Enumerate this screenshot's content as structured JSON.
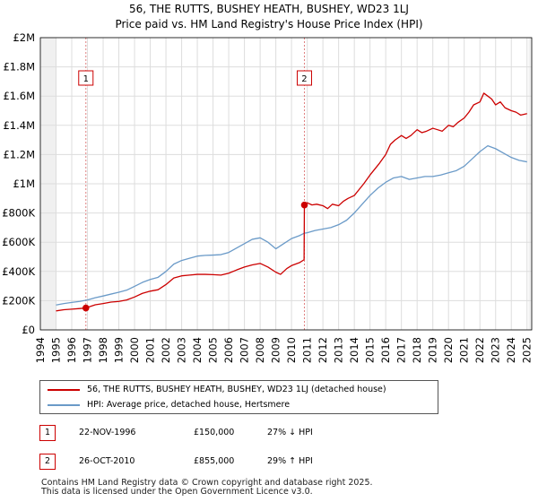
{
  "chart_data": {
    "type": "line",
    "title": "56, THE RUTTS, BUSHEY HEATH, BUSHEY, WD23 1LJ",
    "subtitle": "Price paid vs. HM Land Registry's House Price Index (HPI)",
    "xlim": [
      1994,
      2025.3
    ],
    "ylim": [
      0,
      2000000
    ],
    "x_ticks": [
      1994,
      1995,
      1996,
      1997,
      1998,
      1999,
      2000,
      2001,
      2002,
      2003,
      2004,
      2005,
      2006,
      2007,
      2008,
      2009,
      2010,
      2011,
      2012,
      2013,
      2014,
      2015,
      2016,
      2017,
      2018,
      2019,
      2020,
      2021,
      2022,
      2023,
      2024,
      2025
    ],
    "y_ticks": [
      {
        "value": 0,
        "label": "£0"
      },
      {
        "value": 200000,
        "label": "£200K"
      },
      {
        "value": 400000,
        "label": "£400K"
      },
      {
        "value": 600000,
        "label": "£600K"
      },
      {
        "value": 800000,
        "label": "£800K"
      },
      {
        "value": 1000000,
        "label": "£1M"
      },
      {
        "value": 1200000,
        "label": "£1.2M"
      },
      {
        "value": 1400000,
        "label": "£1.4M"
      },
      {
        "value": 1600000,
        "label": "£1.6M"
      },
      {
        "value": 1800000,
        "label": "£1.8M"
      },
      {
        "value": 2000000,
        "label": "£2M"
      }
    ],
    "grid": true,
    "data_range": [
      1995,
      2025.1
    ],
    "series": [
      {
        "name": "56, THE RUTTS, BUSHEY HEATH, BUSHEY, WD23 1LJ (detached house)",
        "color": "#cc0000",
        "x": [
          1995.0,
          1995.5,
          1996.0,
          1996.5,
          1996.9,
          1997.5,
          1998.0,
          1998.5,
          1999.0,
          1999.5,
          2000.0,
          2000.5,
          2001.0,
          2001.5,
          2002.0,
          2002.5,
          2003.0,
          2003.5,
          2004.0,
          2004.5,
          2005.0,
          2005.5,
          2006.0,
          2006.5,
          2007.0,
          2007.5,
          2008.0,
          2008.5,
          2009.0,
          2009.3,
          2009.7,
          2010.0,
          2010.5,
          2010.8,
          2010.82,
          2011.0,
          2011.3,
          2011.6,
          2012.0,
          2012.3,
          2012.6,
          2013.0,
          2013.3,
          2013.6,
          2014.0,
          2014.3,
          2014.6,
          2015.0,
          2015.3,
          2015.6,
          2016.0,
          2016.3,
          2016.6,
          2017.0,
          2017.3,
          2017.6,
          2018.0,
          2018.3,
          2018.6,
          2019.0,
          2019.3,
          2019.6,
          2020.0,
          2020.3,
          2020.6,
          2021.0,
          2021.3,
          2021.6,
          2022.0,
          2022.25,
          2022.5,
          2022.75,
          2023.0,
          2023.3,
          2023.6,
          2024.0,
          2024.3,
          2024.6,
          2025.0
        ],
        "values": [
          130000,
          138000,
          142000,
          146000,
          150000,
          172000,
          180000,
          190000,
          195000,
          205000,
          225000,
          250000,
          265000,
          275000,
          310000,
          355000,
          370000,
          375000,
          380000,
          380000,
          378000,
          375000,
          388000,
          410000,
          430000,
          445000,
          455000,
          430000,
          395000,
          380000,
          420000,
          440000,
          460000,
          480000,
          855000,
          870000,
          855000,
          860000,
          850000,
          830000,
          860000,
          850000,
          880000,
          900000,
          920000,
          960000,
          1000000,
          1060000,
          1100000,
          1140000,
          1200000,
          1270000,
          1300000,
          1330000,
          1310000,
          1330000,
          1370000,
          1350000,
          1360000,
          1380000,
          1370000,
          1360000,
          1400000,
          1390000,
          1420000,
          1450000,
          1490000,
          1540000,
          1560000,
          1620000,
          1600000,
          1580000,
          1540000,
          1560000,
          1520000,
          1500000,
          1490000,
          1470000,
          1480000
        ]
      },
      {
        "name": "HPI: Average price, detached house, Hertsmere",
        "color": "#6a9ac8",
        "x": [
          1995.0,
          1995.5,
          1996.0,
          1996.5,
          1997.0,
          1997.5,
          1998.0,
          1998.5,
          1999.0,
          1999.5,
          2000.0,
          2000.5,
          2001.0,
          2001.5,
          2002.0,
          2002.5,
          2003.0,
          2003.5,
          2004.0,
          2004.5,
          2005.0,
          2005.5,
          2006.0,
          2006.5,
          2007.0,
          2007.5,
          2008.0,
          2008.5,
          2009.0,
          2009.5,
          2010.0,
          2010.5,
          2010.82,
          2011.0,
          2011.5,
          2012.0,
          2012.5,
          2013.0,
          2013.5,
          2014.0,
          2014.5,
          2015.0,
          2015.5,
          2016.0,
          2016.5,
          2017.0,
          2017.5,
          2018.0,
          2018.5,
          2019.0,
          2019.5,
          2020.0,
          2020.5,
          2021.0,
          2021.5,
          2022.0,
          2022.5,
          2023.0,
          2023.5,
          2024.0,
          2024.5,
          2025.0
        ],
        "values": [
          170000,
          180000,
          188000,
          195000,
          205000,
          220000,
          232000,
          245000,
          258000,
          272000,
          298000,
          325000,
          345000,
          360000,
          400000,
          450000,
          475000,
          490000,
          505000,
          510000,
          512000,
          515000,
          530000,
          560000,
          590000,
          620000,
          630000,
          600000,
          555000,
          590000,
          625000,
          645000,
          662000,
          665000,
          680000,
          690000,
          700000,
          720000,
          750000,
          800000,
          860000,
          920000,
          970000,
          1010000,
          1040000,
          1050000,
          1030000,
          1040000,
          1050000,
          1050000,
          1060000,
          1075000,
          1090000,
          1120000,
          1170000,
          1220000,
          1260000,
          1240000,
          1210000,
          1180000,
          1160000,
          1150000
        ]
      }
    ],
    "transactions": [
      {
        "id": "1",
        "x": 1996.9,
        "value": 150000
      },
      {
        "id": "2",
        "x": 2010.82,
        "value": 855000
      }
    ]
  },
  "legend": {
    "property_label": "56, THE RUTTS, BUSHEY HEATH, BUSHEY, WD23 1LJ (detached house)",
    "hpi_label": "HPI: Average price, detached house, Hertsmere"
  },
  "table": [
    {
      "id": "1",
      "date": "22-NOV-1996",
      "price": "£150,000",
      "delta": "27% ↓ HPI"
    },
    {
      "id": "2",
      "date": "26-OCT-2010",
      "price": "£855,000",
      "delta": "29% ↑ HPI"
    }
  ],
  "footer": {
    "line1": "Contains HM Land Registry data © Crown copyright and database right 2025.",
    "line2": "This data is licensed under the Open Government Licence v3.0."
  }
}
